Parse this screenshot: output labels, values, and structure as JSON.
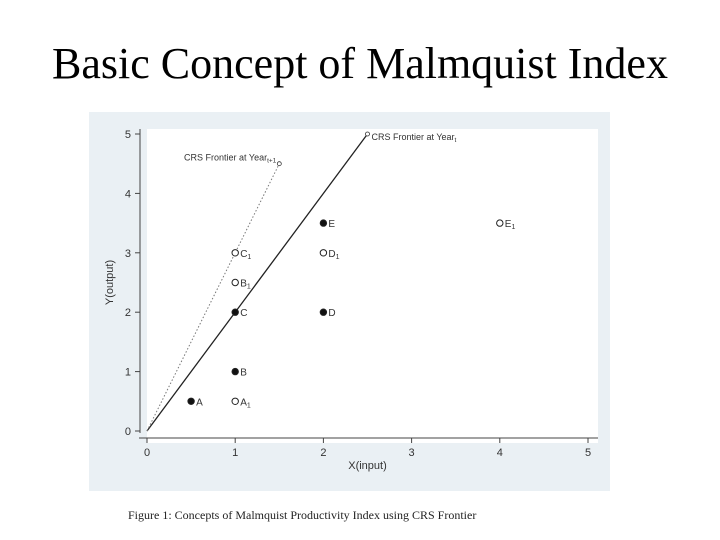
{
  "slide": {
    "title": "Basic Concept of Malmquist Index",
    "caption": "Figure 1: Concepts of Malmquist Productivity Index using CRS Frontier"
  },
  "chart_data": {
    "type": "scatter",
    "title": "",
    "xlabel": "X(input)",
    "ylabel": "Y(output)",
    "xlim": [
      0,
      5
    ],
    "ylim": [
      0,
      5
    ],
    "x_ticks": [
      "0",
      "1",
      "2",
      "3",
      "4",
      "5"
    ],
    "y_ticks": [
      "0",
      "1",
      "2",
      "3",
      "4",
      "5"
    ],
    "grid": false,
    "lines": [
      {
        "name": "CRS Frontier at Yeart",
        "style": "solid",
        "color": "#222222",
        "x": [
          0,
          2.5
        ],
        "y": [
          0,
          5
        ]
      },
      {
        "name": "CRS Frontier at Yeart+1",
        "style": "dotted",
        "color": "#777777",
        "x": [
          0,
          1.5
        ],
        "y": [
          0,
          4.5
        ]
      }
    ],
    "points": [
      {
        "label": "A",
        "x": 0.5,
        "y": 0.5,
        "filled": true
      },
      {
        "label": "A1",
        "x": 1,
        "y": 0.5,
        "filled": false
      },
      {
        "label": "B",
        "x": 1,
        "y": 1,
        "filled": true
      },
      {
        "label": "C",
        "x": 1,
        "y": 2,
        "filled": true
      },
      {
        "label": "B1",
        "x": 1,
        "y": 2.5,
        "filled": false
      },
      {
        "label": "C1",
        "x": 1,
        "y": 3,
        "filled": false
      },
      {
        "label": "D",
        "x": 2,
        "y": 2,
        "filled": true
      },
      {
        "label": "D1",
        "x": 2,
        "y": 3,
        "filled": false
      },
      {
        "label": "E",
        "x": 2,
        "y": 3.5,
        "filled": true
      },
      {
        "label": "E1",
        "x": 4,
        "y": 3.5,
        "filled": false
      }
    ]
  }
}
